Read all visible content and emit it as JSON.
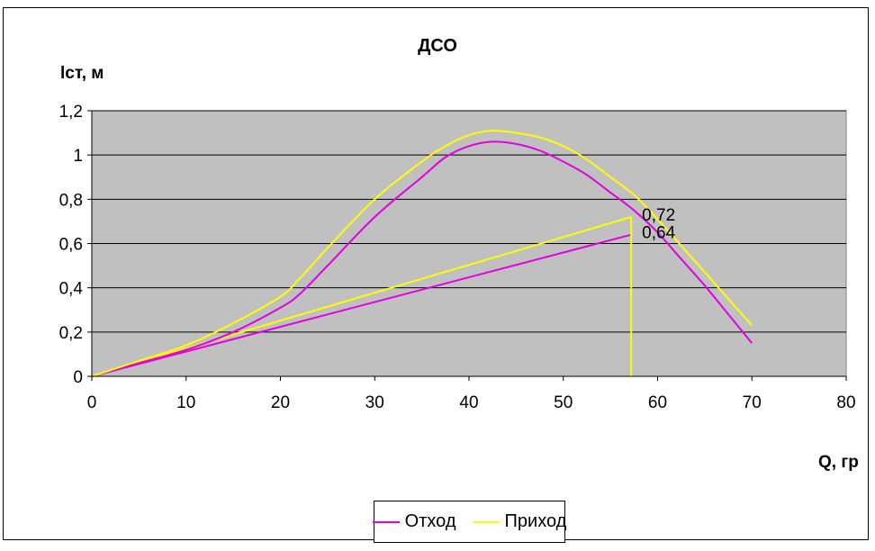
{
  "chart_data": {
    "type": "line",
    "title": "ДСО",
    "ylabel": "lст, м",
    "xlabel": "Q, гр",
    "xlim": [
      0,
      80
    ],
    "ylim": [
      0,
      1.2
    ],
    "x_ticks": [
      "0",
      "10",
      "20",
      "30",
      "40",
      "50",
      "60",
      "70",
      "80"
    ],
    "y_ticks": [
      "0",
      "0,2",
      "0,4",
      "0,6",
      "0,8",
      "1",
      "1,2"
    ],
    "grid": "horizontal",
    "plot_background": "#C0C0C0",
    "legend_position": "bottom",
    "series": [
      {
        "name": "Отход",
        "color": "#E000E0",
        "x": [
          0,
          5,
          10,
          15,
          20,
          22,
          25,
          30,
          35,
          37.5,
          40,
          42.5,
          45,
          47.5,
          50,
          52.5,
          55,
          57.5,
          60,
          62.5,
          65,
          67.5,
          70
        ],
        "y": [
          0,
          0.06,
          0.12,
          0.2,
          0.31,
          0.37,
          0.5,
          0.72,
          0.9,
          0.99,
          1.04,
          1.06,
          1.05,
          1.02,
          0.97,
          0.91,
          0.83,
          0.75,
          0.65,
          0.53,
          0.41,
          0.28,
          0.15
        ]
      },
      {
        "name": "Приход",
        "color": "#FFFF00",
        "x": [
          0,
          5,
          10,
          15,
          20,
          22,
          25,
          30,
          35,
          37.5,
          40,
          42.5,
          45,
          47.5,
          50,
          52.5,
          55,
          57.5,
          60,
          62.5,
          65,
          67.5,
          70
        ],
        "y": [
          0,
          0.07,
          0.14,
          0.24,
          0.36,
          0.44,
          0.58,
          0.8,
          0.97,
          1.04,
          1.09,
          1.11,
          1.1,
          1.08,
          1.04,
          0.98,
          0.9,
          0.82,
          0.71,
          0.59,
          0.47,
          0.35,
          0.23
        ]
      }
    ],
    "tangent_lines": [
      {
        "series": "Отход",
        "color": "#E000E0",
        "x": [
          0,
          57.2
        ],
        "y": [
          0,
          0.64
        ],
        "label": "0,64"
      },
      {
        "series": "Приход",
        "color": "#FFFF00",
        "x": [
          0,
          57.2
        ],
        "y": [
          0,
          0.72
        ],
        "label": "0,72"
      }
    ],
    "vertical_marker": {
      "x": 57.2,
      "y_top": 0.72,
      "color": "#FFFF00"
    }
  }
}
